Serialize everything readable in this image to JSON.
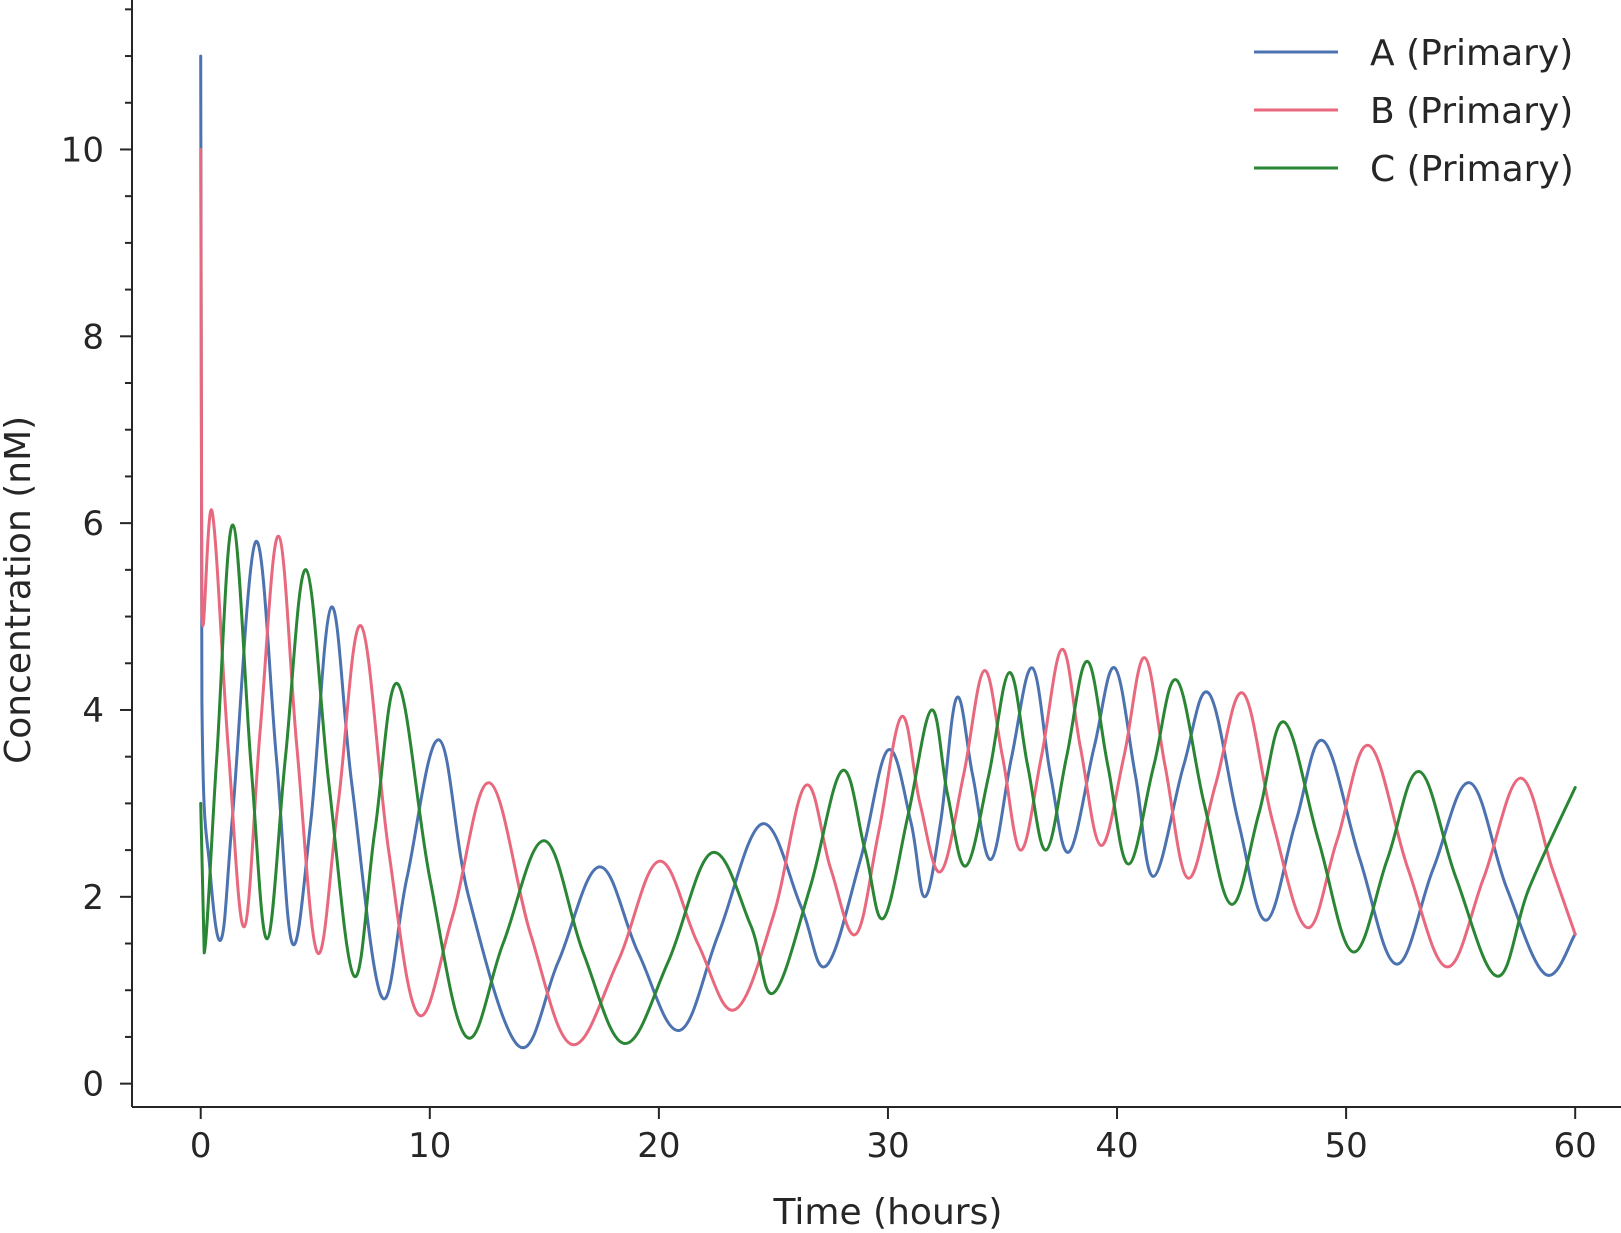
{
  "chart_data": {
    "type": "line",
    "xlabel": "Time (hours)",
    "ylabel": "Concentration (nM)",
    "xlim": [
      -3,
      62
    ],
    "ylim": [
      -0.25,
      11.6
    ],
    "xticks": [
      0,
      10,
      20,
      30,
      40,
      50,
      60
    ],
    "yticks": [
      0,
      2,
      4,
      6,
      8,
      10
    ],
    "yminor_step": 0.5,
    "grid": false,
    "legend_position": "top-right",
    "series": [
      {
        "name": "A (Primary)",
        "color": "#4C72B0",
        "points": [
          [
            0,
            11.0
          ],
          [
            0.05,
            4.1
          ],
          [
            0.4,
            2.3
          ],
          [
            0.9,
            1.55
          ],
          [
            1.4,
            2.9
          ],
          [
            2.4,
            5.8
          ],
          [
            3.3,
            3.5
          ],
          [
            4.0,
            1.5
          ],
          [
            4.8,
            2.8
          ],
          [
            5.7,
            5.1
          ],
          [
            6.6,
            3.2
          ],
          [
            7.9,
            0.93
          ],
          [
            9.0,
            2.2
          ],
          [
            10.4,
            3.68
          ],
          [
            11.7,
            2.0
          ],
          [
            13.9,
            0.4
          ],
          [
            15.6,
            1.3
          ],
          [
            17.4,
            2.32
          ],
          [
            19.1,
            1.4
          ],
          [
            20.9,
            0.57
          ],
          [
            22.6,
            1.6
          ],
          [
            24.5,
            2.78
          ],
          [
            26.2,
            1.9
          ],
          [
            27.3,
            1.26
          ],
          [
            28.8,
            2.4
          ],
          [
            30.0,
            3.57
          ],
          [
            31.0,
            2.8
          ],
          [
            31.6,
            2.0
          ],
          [
            32.3,
            2.8
          ],
          [
            33.0,
            4.13
          ],
          [
            33.7,
            3.3
          ],
          [
            34.5,
            2.4
          ],
          [
            35.4,
            3.5
          ],
          [
            36.3,
            4.45
          ],
          [
            37.1,
            3.3
          ],
          [
            37.9,
            2.48
          ],
          [
            39.0,
            3.6
          ],
          [
            39.9,
            4.45
          ],
          [
            40.8,
            3.3
          ],
          [
            41.6,
            2.22
          ],
          [
            42.9,
            3.4
          ],
          [
            44.0,
            4.18
          ],
          [
            45.3,
            2.8
          ],
          [
            46.5,
            1.75
          ],
          [
            47.8,
            2.8
          ],
          [
            49.0,
            3.67
          ],
          [
            50.6,
            2.4
          ],
          [
            52.2,
            1.28
          ],
          [
            53.8,
            2.3
          ],
          [
            55.4,
            3.22
          ],
          [
            57.0,
            2.1
          ],
          [
            58.7,
            1.17
          ],
          [
            60.0,
            1.6
          ]
        ]
      },
      {
        "name": "B (Primary)",
        "color": "#E8697E",
        "points": [
          [
            0,
            10.0
          ],
          [
            0.05,
            5.05
          ],
          [
            0.5,
            6.12
          ],
          [
            1.2,
            3.6
          ],
          [
            1.9,
            1.68
          ],
          [
            2.6,
            3.8
          ],
          [
            3.4,
            5.86
          ],
          [
            4.2,
            3.6
          ],
          [
            5.1,
            1.4
          ],
          [
            6.0,
            3.0
          ],
          [
            7.0,
            4.9
          ],
          [
            8.2,
            2.5
          ],
          [
            9.5,
            0.74
          ],
          [
            11.0,
            1.8
          ],
          [
            12.6,
            3.22
          ],
          [
            14.4,
            1.6
          ],
          [
            16.2,
            0.42
          ],
          [
            18.2,
            1.3
          ],
          [
            20.0,
            2.38
          ],
          [
            21.7,
            1.5
          ],
          [
            23.3,
            0.79
          ],
          [
            25.0,
            1.8
          ],
          [
            26.4,
            3.19
          ],
          [
            27.5,
            2.3
          ],
          [
            28.6,
            1.6
          ],
          [
            29.6,
            2.7
          ],
          [
            30.6,
            3.93
          ],
          [
            31.4,
            3.0
          ],
          [
            32.3,
            2.27
          ],
          [
            33.3,
            3.3
          ],
          [
            34.2,
            4.42
          ],
          [
            35.0,
            3.5
          ],
          [
            35.8,
            2.5
          ],
          [
            36.7,
            3.5
          ],
          [
            37.6,
            4.65
          ],
          [
            38.4,
            3.6
          ],
          [
            39.3,
            2.55
          ],
          [
            40.3,
            3.5
          ],
          [
            41.2,
            4.56
          ],
          [
            42.1,
            3.4
          ],
          [
            43.1,
            2.2
          ],
          [
            44.3,
            3.2
          ],
          [
            45.5,
            4.18
          ],
          [
            46.8,
            2.8
          ],
          [
            48.3,
            1.67
          ],
          [
            49.6,
            2.6
          ],
          [
            51.0,
            3.62
          ],
          [
            52.7,
            2.3
          ],
          [
            54.4,
            1.25
          ],
          [
            56.0,
            2.2
          ],
          [
            57.6,
            3.27
          ],
          [
            59.0,
            2.3
          ],
          [
            60.0,
            1.6
          ]
        ]
      },
      {
        "name": "C (Primary)",
        "color": "#2A8634",
        "points": [
          [
            0,
            3.0
          ],
          [
            0.15,
            1.4
          ],
          [
            0.7,
            3.5
          ],
          [
            1.4,
            5.98
          ],
          [
            2.2,
            3.4
          ],
          [
            2.9,
            1.55
          ],
          [
            3.7,
            3.5
          ],
          [
            4.6,
            5.5
          ],
          [
            5.6,
            3.2
          ],
          [
            6.7,
            1.15
          ],
          [
            7.6,
            2.7
          ],
          [
            8.6,
            4.28
          ],
          [
            10.0,
            2.2
          ],
          [
            11.6,
            0.5
          ],
          [
            13.2,
            1.5
          ],
          [
            15.0,
            2.6
          ],
          [
            16.7,
            1.4
          ],
          [
            18.5,
            0.43
          ],
          [
            20.4,
            1.3
          ],
          [
            22.3,
            2.47
          ],
          [
            24.0,
            1.7
          ],
          [
            25.0,
            0.97
          ],
          [
            26.6,
            2.1
          ],
          [
            28.0,
            3.35
          ],
          [
            29.0,
            2.5
          ],
          [
            29.8,
            1.77
          ],
          [
            30.9,
            2.9
          ],
          [
            31.9,
            4.0
          ],
          [
            32.6,
            3.1
          ],
          [
            33.4,
            2.33
          ],
          [
            34.4,
            3.3
          ],
          [
            35.3,
            4.4
          ],
          [
            36.1,
            3.4
          ],
          [
            36.9,
            2.5
          ],
          [
            37.8,
            3.5
          ],
          [
            38.7,
            4.52
          ],
          [
            39.6,
            3.4
          ],
          [
            40.5,
            2.35
          ],
          [
            41.6,
            3.4
          ],
          [
            42.6,
            4.32
          ],
          [
            43.8,
            3.0
          ],
          [
            45.0,
            1.92
          ],
          [
            46.2,
            2.9
          ],
          [
            47.3,
            3.87
          ],
          [
            48.8,
            2.6
          ],
          [
            50.3,
            1.41
          ],
          [
            51.8,
            2.4
          ],
          [
            53.2,
            3.34
          ],
          [
            54.8,
            2.2
          ],
          [
            56.6,
            1.15
          ],
          [
            58.0,
            2.1
          ],
          [
            60.0,
            3.17
          ]
        ]
      }
    ]
  }
}
